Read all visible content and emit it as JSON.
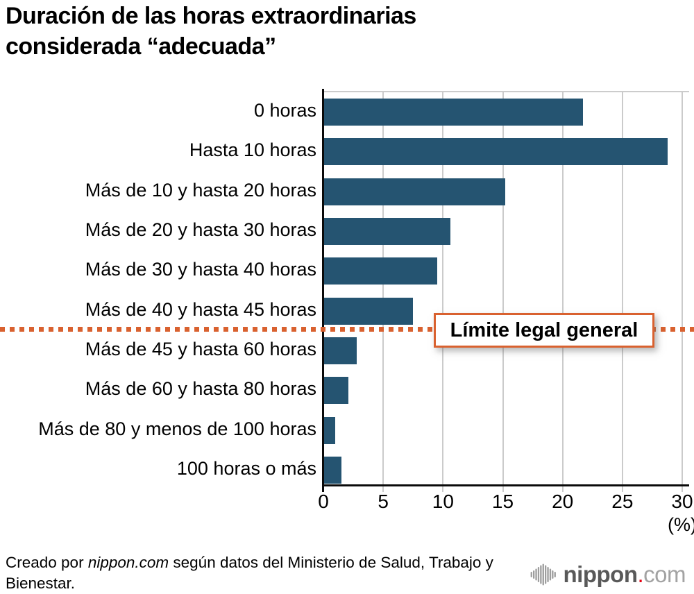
{
  "title": "Duración de las horas extraordinarias\nconsiderada “adecuada”",
  "chart_data": {
    "type": "bar",
    "orientation": "horizontal",
    "categories": [
      "0 horas",
      "Hasta 10 horas",
      "Más de 10 y hasta 20 horas",
      "Más de 20 y hasta 30 horas",
      "Más de 30 y hasta 40 horas",
      "Más de 40 y hasta 45 horas",
      "Más de 45 y hasta 60 horas",
      "Más de 60 y hasta 80 horas",
      "Más de 80 y menos de 100 horas",
      "100 horas o más"
    ],
    "values": [
      21.7,
      28.8,
      15.2,
      10.6,
      9.5,
      7.5,
      2.8,
      2.1,
      1.0,
      1.5
    ],
    "xlim": [
      0,
      30
    ],
    "xticks": [
      0,
      5,
      10,
      15,
      20,
      25,
      30
    ],
    "unit_label": "(%)",
    "grid": true,
    "bar_color": "#255471",
    "gridline_color": "#cbcbcb",
    "annotation": {
      "label": "Límite legal general",
      "line_style": "dotted",
      "color": "#d9612f",
      "after_category_index": 5
    }
  },
  "footer": {
    "prefix": "Creado por ",
    "brand_italic": "nippon.com",
    "suffix": " según datos del Ministerio de Salud, Trabajo y Bienestar."
  },
  "logo": {
    "name": "nippon",
    "dot": ".",
    "tld": "com",
    "name_color": "#595959",
    "dot_color": "#e60012",
    "tld_color": "#a3a3a3",
    "icon_color": "#9d9d9d"
  }
}
